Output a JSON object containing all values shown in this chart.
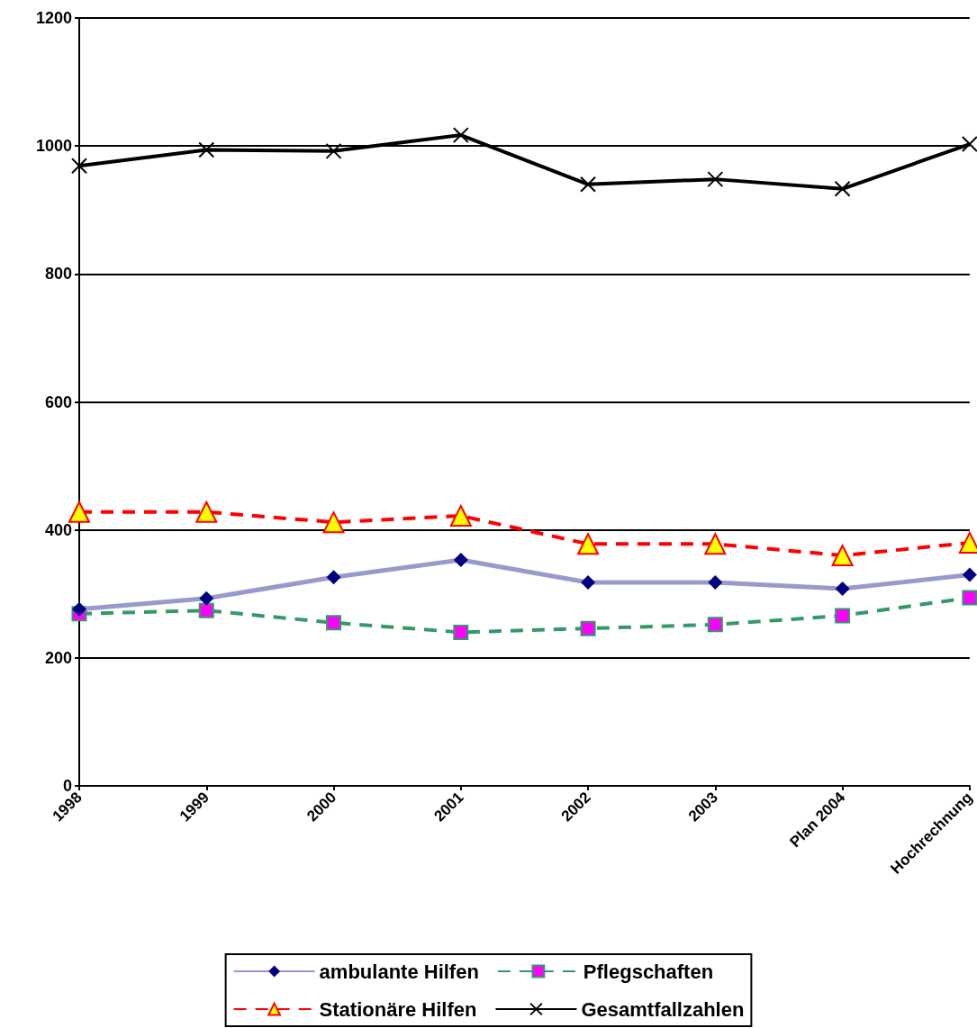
{
  "chart_data": {
    "type": "line",
    "categories": [
      "1998",
      "1999",
      "2000",
      "2001",
      "2002",
      "2003",
      "Plan 2004",
      "Hochrechnung"
    ],
    "ylim": [
      0,
      1200
    ],
    "yticks": [
      0,
      200,
      400,
      600,
      800,
      1000,
      1200
    ],
    "grid": "y",
    "legend": "bottom",
    "series": [
      {
        "name": "ambulante Hilfen",
        "color": "#9999cc",
        "marker": "diamond",
        "line_style": "solid",
        "values": [
          276,
          293,
          326,
          353,
          318,
          318,
          308,
          330
        ]
      },
      {
        "name": "Pflegschaften",
        "color": "#339966",
        "marker": "square",
        "line_style": "dashed",
        "values": [
          269,
          274,
          255,
          240,
          246,
          252,
          266,
          294
        ]
      },
      {
        "name": "Stationäre Hilfen",
        "color": "#ff0000",
        "marker": "triangle",
        "line_style": "dashed",
        "values": [
          428,
          428,
          412,
          422,
          378,
          378,
          360,
          380
        ]
      },
      {
        "name": "Gesamtfallzahlen",
        "color": "#000000",
        "marker": "cross",
        "line_style": "solid",
        "values": [
          969,
          994,
          992,
          1017,
          940,
          948,
          933,
          1003
        ]
      }
    ]
  }
}
